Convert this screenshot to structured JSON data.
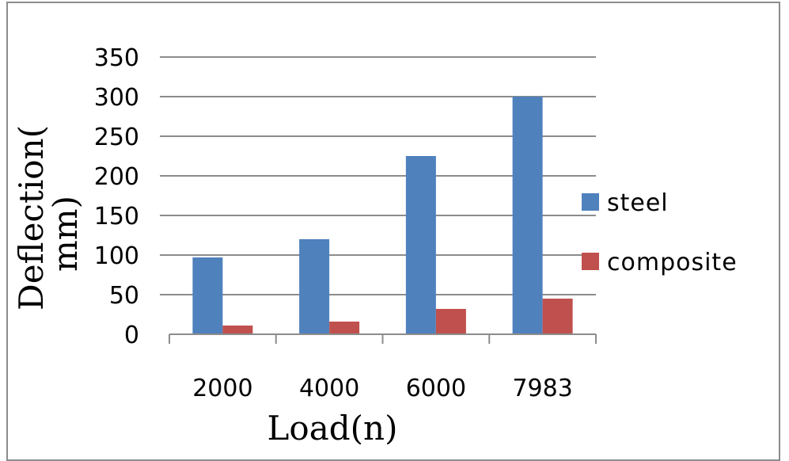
{
  "chart_data": {
    "type": "bar",
    "title": "",
    "xlabel": "Load(n)",
    "ylabel_lines": [
      "Deflection(",
      "mm)"
    ],
    "categories": [
      "2000",
      "4000",
      "6000",
      "7983"
    ],
    "series": [
      {
        "name": "steel",
        "color": "#4f81bd",
        "values": [
          97,
          120,
          225,
          300
        ]
      },
      {
        "name": "composite",
        "color": "#c0504d",
        "values": [
          11,
          16,
          32,
          45
        ]
      }
    ],
    "ylim": [
      0,
      350
    ],
    "yticks": [
      0,
      50,
      100,
      150,
      200,
      250,
      300,
      350
    ],
    "grid": true,
    "legend": "right"
  }
}
